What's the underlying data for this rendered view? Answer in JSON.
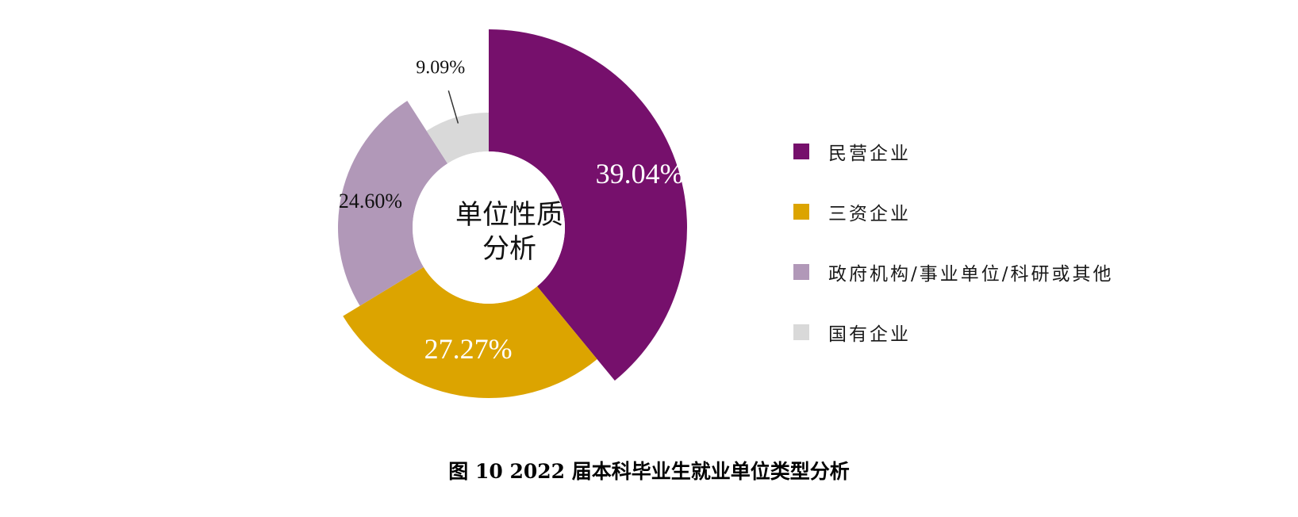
{
  "chart_data": {
    "type": "pie",
    "categories": [
      "民营企业",
      "三资企业",
      "政府机构/事业单位/科研或其他",
      "国有企业"
    ],
    "values": [
      39.04,
      27.27,
      24.6,
      9.09
    ],
    "value_labels": [
      "39.04%",
      "27.27%",
      "24.60%",
      "9.09%"
    ],
    "colors": [
      "#76106C",
      "#DCA400",
      "#B198B8",
      "#D9D9D9"
    ],
    "center_label": [
      "单位性质",
      "分析"
    ],
    "legend_position": "right",
    "caption": "图 10  2022 届本科毕业生就业单位类型分析"
  }
}
